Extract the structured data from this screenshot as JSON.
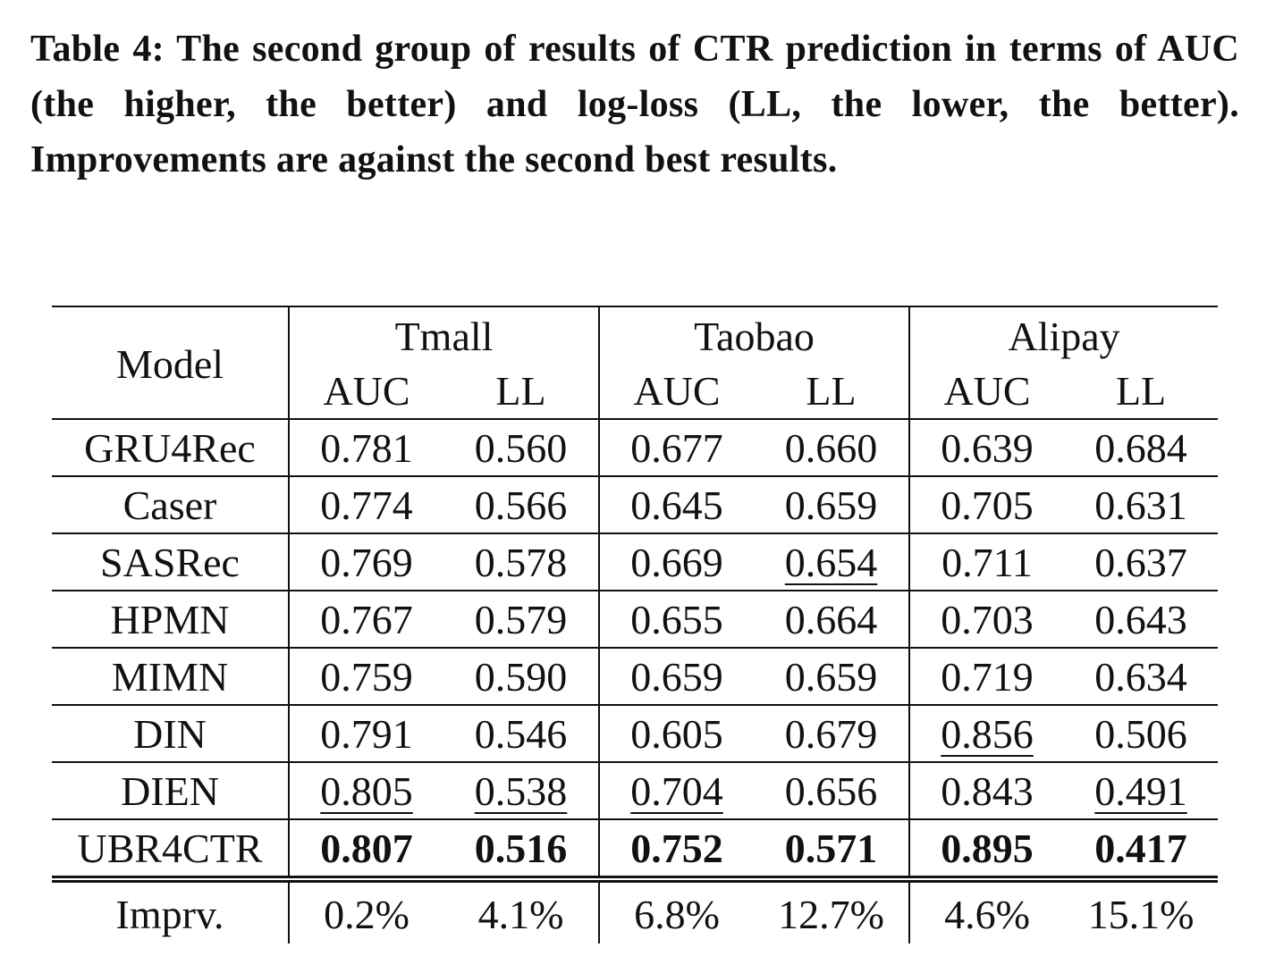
{
  "caption": "Table 4: The second group of results of CTR prediction in terms of AUC (the higher, the better) and log-loss (LL, the lower, the better). Improvements are against the second best results.",
  "table": {
    "header": {
      "model": "Model",
      "groups": [
        "Tmall",
        "Taobao",
        "Alipay"
      ],
      "metrics": [
        "AUC",
        "LL",
        "AUC",
        "LL",
        "AUC",
        "LL"
      ]
    },
    "rows": [
      [
        "GRU4Rec",
        "0.781",
        "0.560",
        "0.677",
        "0.660",
        "0.639",
        "0.684"
      ],
      [
        "Caser",
        "0.774",
        "0.566",
        "0.645",
        "0.659",
        "0.705",
        "0.631"
      ],
      [
        "SASRec",
        "0.769",
        "0.578",
        "0.669",
        "0.654",
        "0.711",
        "0.637"
      ],
      [
        "HPMN",
        "0.767",
        "0.579",
        "0.655",
        "0.664",
        "0.703",
        "0.643"
      ],
      [
        "MIMN",
        "0.759",
        "0.590",
        "0.659",
        "0.659",
        "0.719",
        "0.634"
      ],
      [
        "DIN",
        "0.791",
        "0.546",
        "0.605",
        "0.679",
        "0.856",
        "0.506"
      ],
      [
        "DIEN",
        "0.805",
        "0.538",
        "0.704",
        "0.656",
        "0.843",
        "0.491"
      ],
      [
        "UBR4CTR",
        "0.807",
        "0.516",
        "0.752",
        "0.571",
        "0.895",
        "0.417"
      ]
    ],
    "improvement": [
      "Imprv.",
      "0.2%",
      "4.1%",
      "6.8%",
      "12.7%",
      "4.6%",
      "15.1%"
    ]
  }
}
